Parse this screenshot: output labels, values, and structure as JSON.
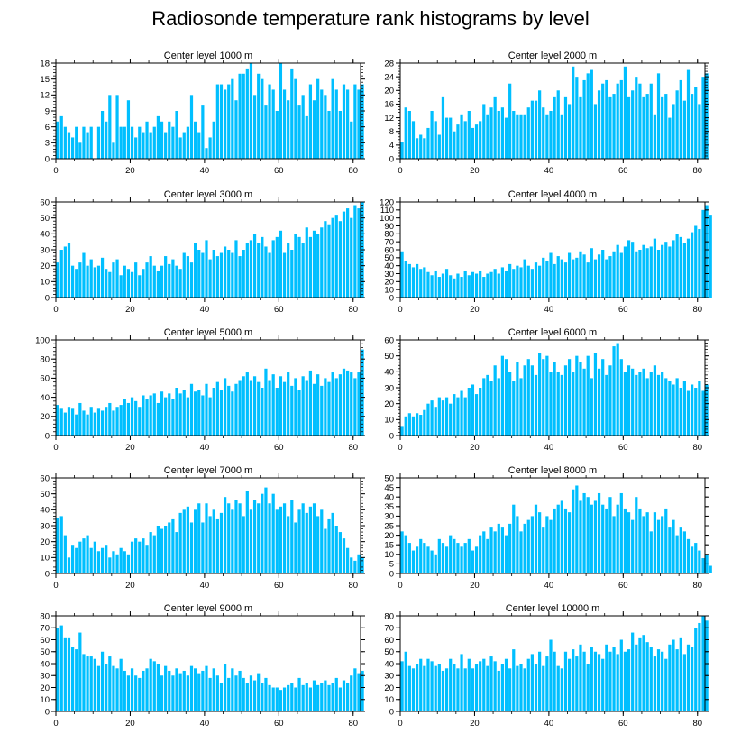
{
  "title": "Radiosonde temperature rank histograms by level",
  "chart_data": [
    {
      "type": "bar",
      "title": "Center level 1000 m",
      "ylim": [
        0,
        18
      ],
      "yticks": [
        0,
        3,
        6,
        9,
        12,
        15,
        18
      ],
      "xlim": [
        0,
        82
      ],
      "xticks": [
        0,
        20,
        40,
        60,
        80
      ],
      "bar_color": "#00BFFF",
      "values": [
        7,
        8,
        6,
        5,
        4,
        6,
        3,
        6,
        5,
        6,
        0,
        6,
        9,
        7,
        12,
        3,
        12,
        6,
        6,
        11,
        6,
        4,
        6,
        5,
        7,
        5,
        6,
        8,
        7,
        5,
        7,
        6,
        9,
        4,
        5,
        6,
        12,
        7,
        5,
        10,
        2,
        4,
        7,
        14,
        14,
        13,
        14,
        15,
        11,
        16,
        16,
        17,
        18,
        12,
        16,
        15,
        10,
        14,
        13,
        9,
        18,
        13,
        11,
        17,
        15,
        10,
        12,
        8,
        14,
        11,
        15,
        13,
        12,
        9,
        15,
        13,
        9,
        14,
        13,
        7,
        14,
        13,
        14
      ]
    },
    {
      "type": "bar",
      "title": "Center level 2000 m",
      "ylim": [
        0,
        28
      ],
      "yticks": [
        0,
        4,
        8,
        12,
        16,
        20,
        24,
        28
      ],
      "xlim": [
        0,
        82
      ],
      "xticks": [
        0,
        20,
        40,
        60,
        80
      ],
      "bar_color": "#00BFFF",
      "values": [
        5,
        15,
        14,
        11,
        6,
        7,
        6,
        9,
        14,
        11,
        7,
        18,
        12,
        12,
        8,
        10,
        13,
        11,
        14,
        9,
        10,
        11,
        16,
        13,
        15,
        18,
        14,
        15,
        12,
        22,
        14,
        13,
        13,
        13,
        15,
        17,
        17,
        20,
        15,
        13,
        14,
        18,
        20,
        13,
        18,
        16,
        27,
        24,
        18,
        23,
        25,
        26,
        16,
        20,
        22,
        23,
        18,
        19,
        22,
        23,
        27,
        18,
        20,
        24,
        22,
        18,
        19,
        22,
        13,
        25,
        18,
        19,
        12,
        16,
        20,
        23,
        17,
        26,
        19,
        21,
        16,
        24,
        25
      ]
    },
    {
      "type": "bar",
      "title": "Center level 3000 m",
      "ylim": [
        0,
        60
      ],
      "yticks": [
        0,
        10,
        20,
        30,
        40,
        50,
        60
      ],
      "xlim": [
        0,
        82
      ],
      "xticks": [
        0,
        20,
        40,
        60,
        80
      ],
      "bar_color": "#00BFFF",
      "values": [
        22,
        30,
        32,
        34,
        20,
        18,
        22,
        28,
        20,
        24,
        19,
        20,
        25,
        18,
        16,
        22,
        24,
        14,
        20,
        18,
        16,
        22,
        14,
        18,
        22,
        26,
        20,
        17,
        20,
        26,
        21,
        24,
        20,
        18,
        28,
        26,
        22,
        34,
        30,
        28,
        36,
        24,
        30,
        26,
        28,
        32,
        30,
        28,
        36,
        26,
        30,
        34,
        36,
        40,
        34,
        38,
        32,
        28,
        36,
        38,
        42,
        28,
        34,
        30,
        40,
        38,
        34,
        44,
        38,
        42,
        40,
        44,
        48,
        46,
        50,
        52,
        48,
        54,
        56,
        50,
        58,
        56,
        62
      ]
    },
    {
      "type": "bar",
      "title": "Center level 4000 m",
      "ylim": [
        0,
        120
      ],
      "yticks": [
        0,
        10,
        20,
        30,
        40,
        50,
        60,
        70,
        80,
        90,
        100,
        110,
        120
      ],
      "xlim": [
        0,
        82
      ],
      "xticks": [
        0,
        20,
        40,
        60,
        80
      ],
      "bar_color": "#00BFFF",
      "values": [
        58,
        46,
        42,
        38,
        42,
        36,
        38,
        32,
        28,
        34,
        26,
        30,
        36,
        28,
        24,
        30,
        26,
        34,
        28,
        32,
        30,
        34,
        26,
        30,
        32,
        36,
        30,
        38,
        34,
        42,
        36,
        40,
        38,
        48,
        40,
        36,
        44,
        40,
        50,
        46,
        56,
        42,
        52,
        48,
        44,
        56,
        48,
        50,
        58,
        54,
        44,
        62,
        48,
        54,
        60,
        48,
        52,
        58,
        66,
        56,
        64,
        72,
        70,
        58,
        60,
        66,
        62,
        64,
        74,
        60,
        66,
        70,
        64,
        72,
        80,
        76,
        68,
        74,
        82,
        90,
        86,
        110,
        116,
        104
      ]
    },
    {
      "type": "bar",
      "title": "Center level 5000 m",
      "ylim": [
        0,
        100
      ],
      "yticks": [
        0,
        20,
        40,
        60,
        80,
        100
      ],
      "xlim": [
        0,
        82
      ],
      "xticks": [
        0,
        20,
        40,
        60,
        80
      ],
      "bar_color": "#00BFFF",
      "values": [
        32,
        28,
        24,
        30,
        28,
        22,
        34,
        26,
        22,
        30,
        24,
        28,
        26,
        30,
        34,
        26,
        30,
        32,
        38,
        34,
        40,
        36,
        30,
        42,
        38,
        42,
        44,
        34,
        46,
        40,
        44,
        38,
        50,
        44,
        48,
        40,
        54,
        46,
        48,
        42,
        54,
        40,
        50,
        56,
        48,
        60,
        52,
        46,
        54,
        58,
        62,
        66,
        58,
        62,
        56,
        50,
        70,
        58,
        64,
        50,
        62,
        56,
        66,
        52,
        60,
        48,
        62,
        58,
        68,
        54,
        64,
        52,
        60,
        56,
        66,
        60,
        64,
        70,
        68,
        66,
        60,
        66,
        90
      ]
    },
    {
      "type": "bar",
      "title": "Center level 6000 m",
      "ylim": [
        0,
        60
      ],
      "yticks": [
        0,
        10,
        20,
        30,
        40,
        50,
        60
      ],
      "xlim": [
        0,
        82
      ],
      "xticks": [
        0,
        20,
        40,
        60,
        80
      ],
      "bar_color": "#00BFFF",
      "values": [
        6,
        12,
        14,
        12,
        14,
        13,
        16,
        20,
        22,
        18,
        24,
        22,
        24,
        20,
        26,
        24,
        28,
        24,
        30,
        32,
        26,
        30,
        36,
        38,
        34,
        44,
        36,
        50,
        48,
        40,
        34,
        46,
        36,
        44,
        48,
        44,
        38,
        52,
        48,
        50,
        40,
        46,
        40,
        38,
        44,
        48,
        40,
        50,
        46,
        42,
        50,
        36,
        52,
        42,
        48,
        38,
        44,
        56,
        58,
        48,
        40,
        44,
        42,
        38,
        40,
        42,
        36,
        40,
        44,
        38,
        40,
        36,
        34,
        32,
        36,
        30,
        34,
        28,
        32,
        30,
        34,
        28,
        32
      ]
    },
    {
      "type": "bar",
      "title": "Center level 7000 m",
      "ylim": [
        0,
        60
      ],
      "yticks": [
        0,
        10,
        20,
        30,
        40,
        50,
        60
      ],
      "xlim": [
        0,
        82
      ],
      "xticks": [
        0,
        20,
        40,
        60,
        80
      ],
      "bar_color": "#00BFFF",
      "values": [
        35,
        36,
        24,
        10,
        18,
        16,
        20,
        22,
        24,
        16,
        20,
        14,
        16,
        18,
        10,
        14,
        12,
        16,
        14,
        12,
        20,
        22,
        20,
        22,
        18,
        26,
        24,
        30,
        28,
        30,
        32,
        34,
        26,
        38,
        40,
        42,
        32,
        40,
        44,
        32,
        44,
        36,
        40,
        34,
        38,
        48,
        44,
        40,
        46,
        44,
        36,
        52,
        40,
        46,
        44,
        50,
        54,
        44,
        50,
        40,
        42,
        44,
        36,
        46,
        32,
        40,
        44,
        38,
        42,
        44,
        36,
        40,
        28,
        34,
        38,
        30,
        26,
        22,
        16,
        10,
        8,
        12,
        10
      ]
    },
    {
      "type": "bar",
      "title": "Center level 8000 m",
      "ylim": [
        0,
        50
      ],
      "yticks": [
        0,
        5,
        10,
        15,
        20,
        25,
        30,
        35,
        40,
        45,
        50
      ],
      "xlim": [
        0,
        82
      ],
      "xticks": [
        0,
        20,
        40,
        60,
        80
      ],
      "bar_color": "#00BFFF",
      "values": [
        22,
        20,
        16,
        12,
        14,
        18,
        16,
        14,
        12,
        10,
        18,
        16,
        14,
        20,
        18,
        16,
        14,
        16,
        18,
        12,
        14,
        20,
        22,
        18,
        24,
        22,
        26,
        24,
        20,
        26,
        36,
        30,
        22,
        26,
        28,
        30,
        36,
        32,
        24,
        30,
        28,
        34,
        36,
        38,
        34,
        32,
        44,
        46,
        38,
        42,
        40,
        36,
        38,
        42,
        36,
        34,
        40,
        30,
        36,
        42,
        34,
        32,
        28,
        40,
        34,
        30,
        32,
        22,
        32,
        28,
        30,
        34,
        24,
        28,
        20,
        24,
        22,
        18,
        14,
        16,
        12,
        8,
        10,
        4
      ]
    },
    {
      "type": "bar",
      "title": "Center level 9000 m",
      "ylim": [
        0,
        80
      ],
      "yticks": [
        0,
        10,
        20,
        30,
        40,
        50,
        60,
        70,
        80
      ],
      "xlim": [
        0,
        82
      ],
      "xticks": [
        0,
        20,
        40,
        60,
        80
      ],
      "bar_color": "#00BFFF",
      "values": [
        70,
        72,
        62,
        62,
        54,
        52,
        66,
        48,
        46,
        46,
        44,
        38,
        50,
        40,
        46,
        38,
        36,
        44,
        34,
        30,
        36,
        30,
        28,
        34,
        36,
        44,
        42,
        40,
        30,
        38,
        34,
        30,
        36,
        32,
        34,
        30,
        38,
        36,
        32,
        34,
        38,
        28,
        36,
        30,
        24,
        40,
        28,
        36,
        30,
        34,
        28,
        24,
        30,
        26,
        32,
        24,
        28,
        22,
        20,
        20,
        18,
        20,
        22,
        24,
        20,
        28,
        22,
        24,
        20,
        26,
        22,
        24,
        26,
        22,
        24,
        28,
        20,
        26,
        24,
        30,
        36,
        32,
        34
      ]
    },
    {
      "type": "bar",
      "title": "Center level 10000 m",
      "ylim": [
        0,
        80
      ],
      "yticks": [
        0,
        10,
        20,
        30,
        40,
        50,
        60,
        70,
        80
      ],
      "xlim": [
        0,
        82
      ],
      "xticks": [
        0,
        20,
        40,
        60,
        80
      ],
      "bar_color": "#00BFFF",
      "values": [
        42,
        50,
        38,
        36,
        40,
        44,
        38,
        44,
        42,
        38,
        40,
        34,
        36,
        44,
        40,
        36,
        48,
        36,
        44,
        36,
        40,
        42,
        44,
        38,
        46,
        42,
        34,
        40,
        44,
        36,
        52,
        38,
        40,
        36,
        44,
        48,
        40,
        50,
        38,
        46,
        60,
        50,
        38,
        36,
        50,
        44,
        52,
        46,
        56,
        50,
        40,
        54,
        50,
        48,
        44,
        56,
        50,
        54,
        48,
        60,
        50,
        52,
        66,
        56,
        62,
        64,
        58,
        54,
        46,
        52,
        50,
        44,
        56,
        60,
        52,
        62,
        48,
        56,
        54,
        70,
        74,
        80,
        76
      ]
    }
  ]
}
